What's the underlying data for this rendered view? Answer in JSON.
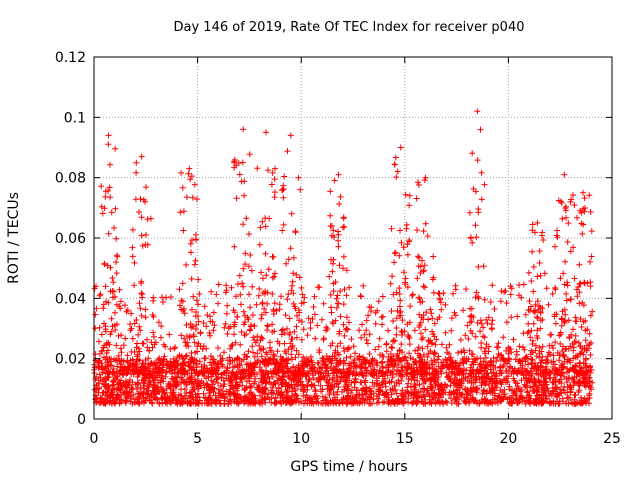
{
  "chart_data": {
    "type": "scatter",
    "title": "Day 146 of 2019, Rate Of TEC Index for receiver p040",
    "xlabel": "GPS time / hours",
    "ylabel": "ROTI / TECUs",
    "xlim": [
      0,
      25
    ],
    "ylim": [
      0,
      0.12
    ],
    "xticks": [
      0,
      5,
      10,
      15,
      20,
      25
    ],
    "yticks": [
      0,
      0.02,
      0.04,
      0.06,
      0.08,
      0.1,
      0.12
    ],
    "xtick_labels": [
      "0",
      "5",
      "10",
      "15",
      "20",
      "25"
    ],
    "ytick_labels": [
      "0",
      "0.02",
      "0.04",
      "0.06",
      "0.08",
      "0.1",
      "0.12"
    ],
    "grid": true,
    "marker": "+",
    "color": "#ff0000",
    "x_data_range": [
      0,
      24
    ],
    "baseline_band": [
      0.005,
      0.02
    ],
    "spikes": [
      {
        "x": 0.7,
        "ymax": 0.094
      },
      {
        "x": 2.3,
        "ymax": 0.087
      },
      {
        "x": 4.6,
        "ymax": 0.083
      },
      {
        "x": 7.2,
        "ymax": 0.096
      },
      {
        "x": 8.3,
        "ymax": 0.095
      },
      {
        "x": 9.5,
        "ymax": 0.094
      },
      {
        "x": 11.8,
        "ymax": 0.081
      },
      {
        "x": 14.8,
        "ymax": 0.09
      },
      {
        "x": 16.0,
        "ymax": 0.08
      },
      {
        "x": 18.5,
        "ymax": 0.102
      },
      {
        "x": 21.4,
        "ymax": 0.065
      },
      {
        "x": 22.7,
        "ymax": 0.081
      },
      {
        "x": 23.6,
        "ymax": 0.075
      }
    ]
  }
}
